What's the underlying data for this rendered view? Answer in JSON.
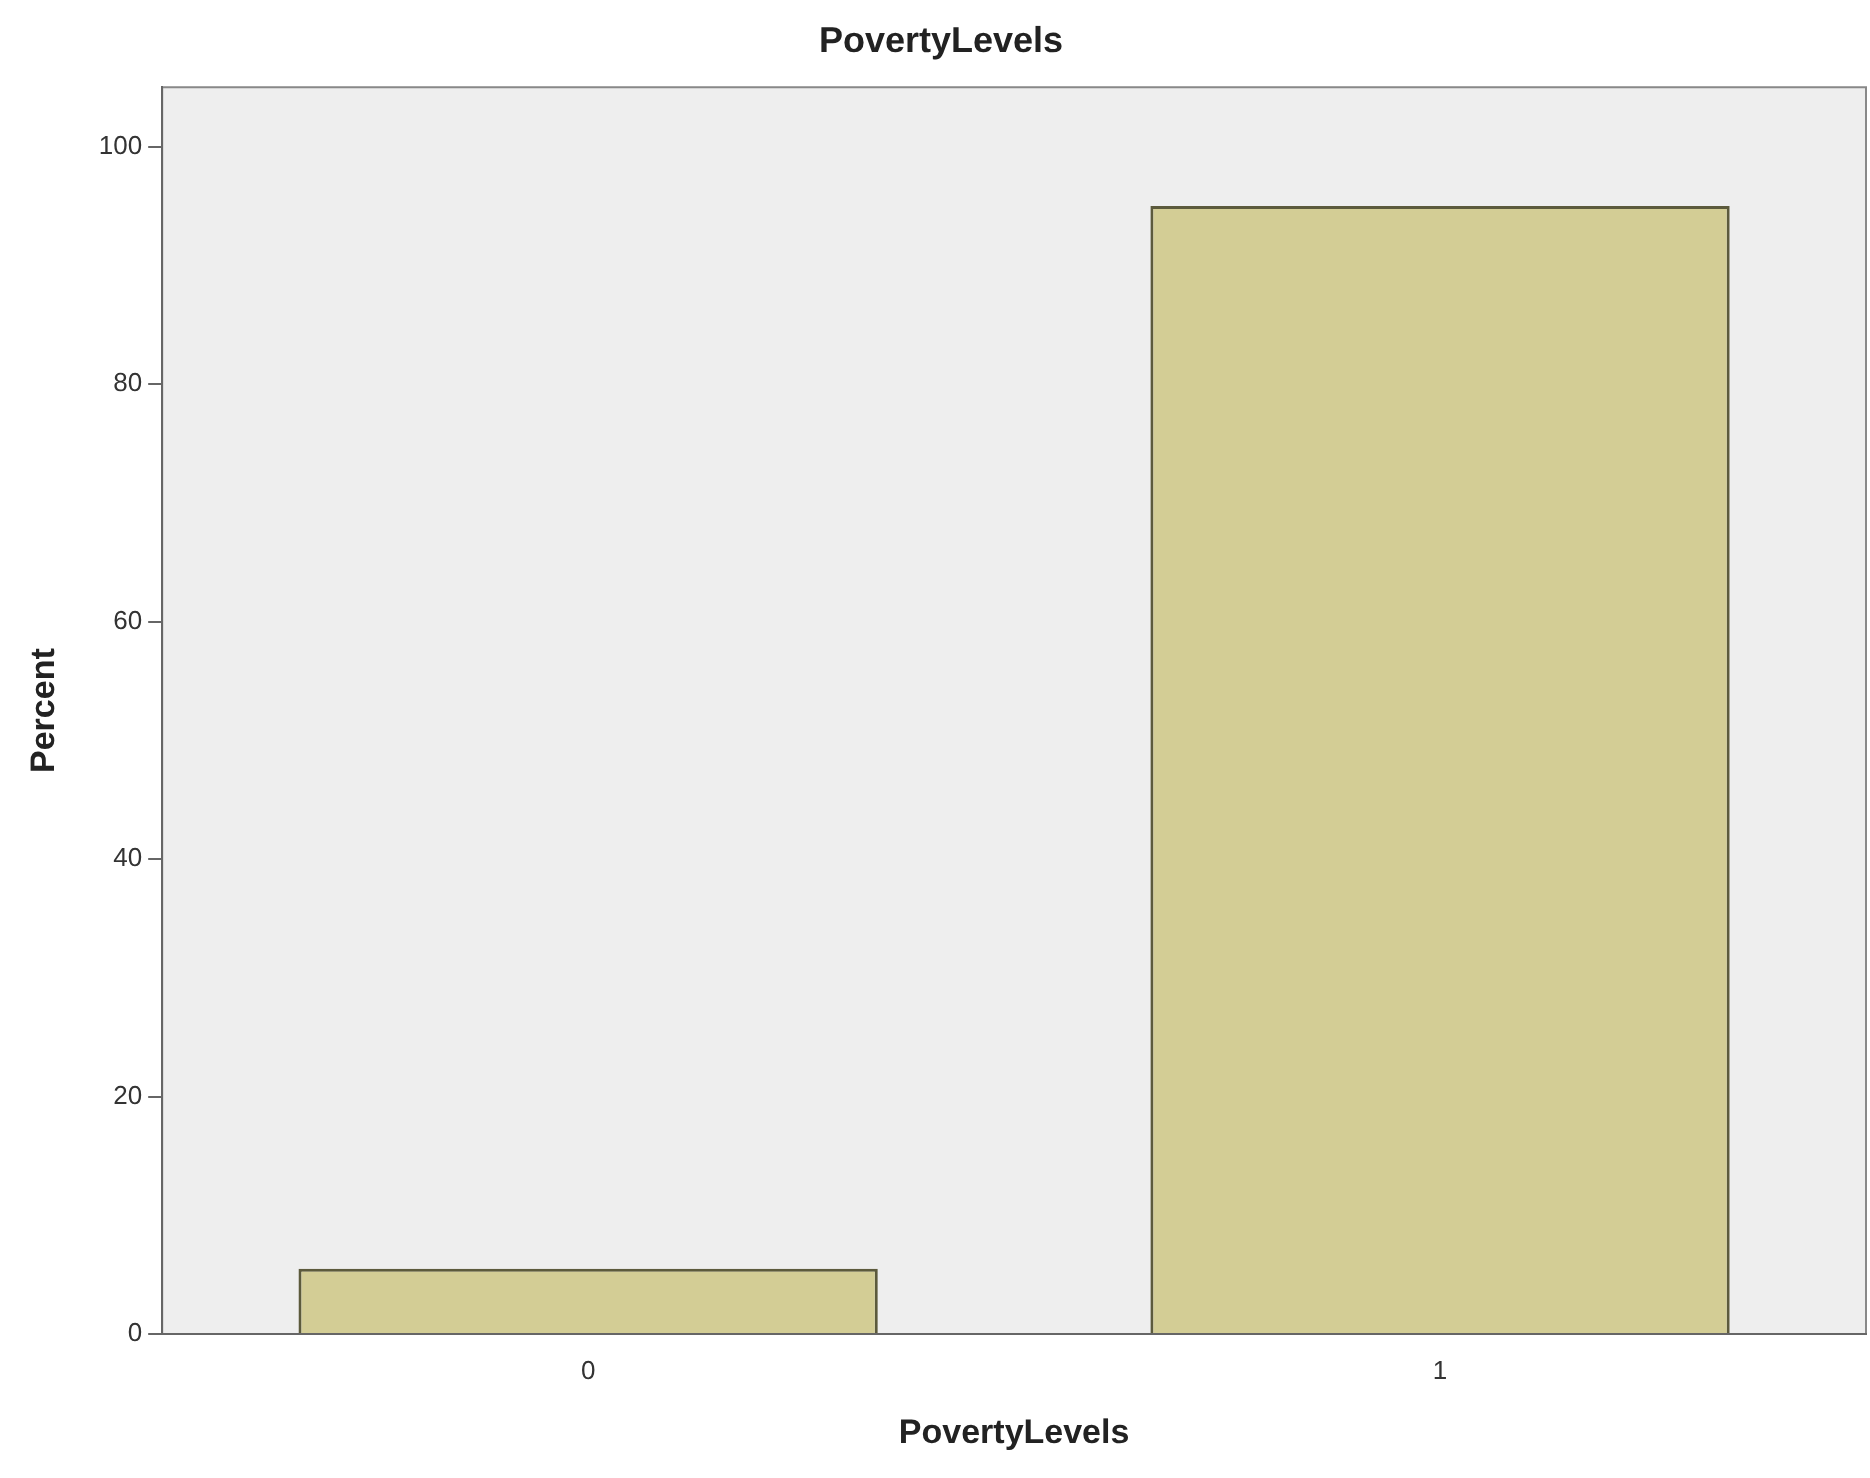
{
  "chart_data": {
    "type": "bar",
    "title": "PovertyLevels",
    "xlabel": "PovertyLevels",
    "ylabel": "Percent",
    "categories": [
      "0",
      "1"
    ],
    "values": [
      5.5,
      95
    ],
    "color": "#d3cd95",
    "ylim": [
      0,
      105
    ],
    "yticks": [
      0,
      20,
      40,
      60,
      80,
      100
    ],
    "grid": false,
    "legend": false
  }
}
